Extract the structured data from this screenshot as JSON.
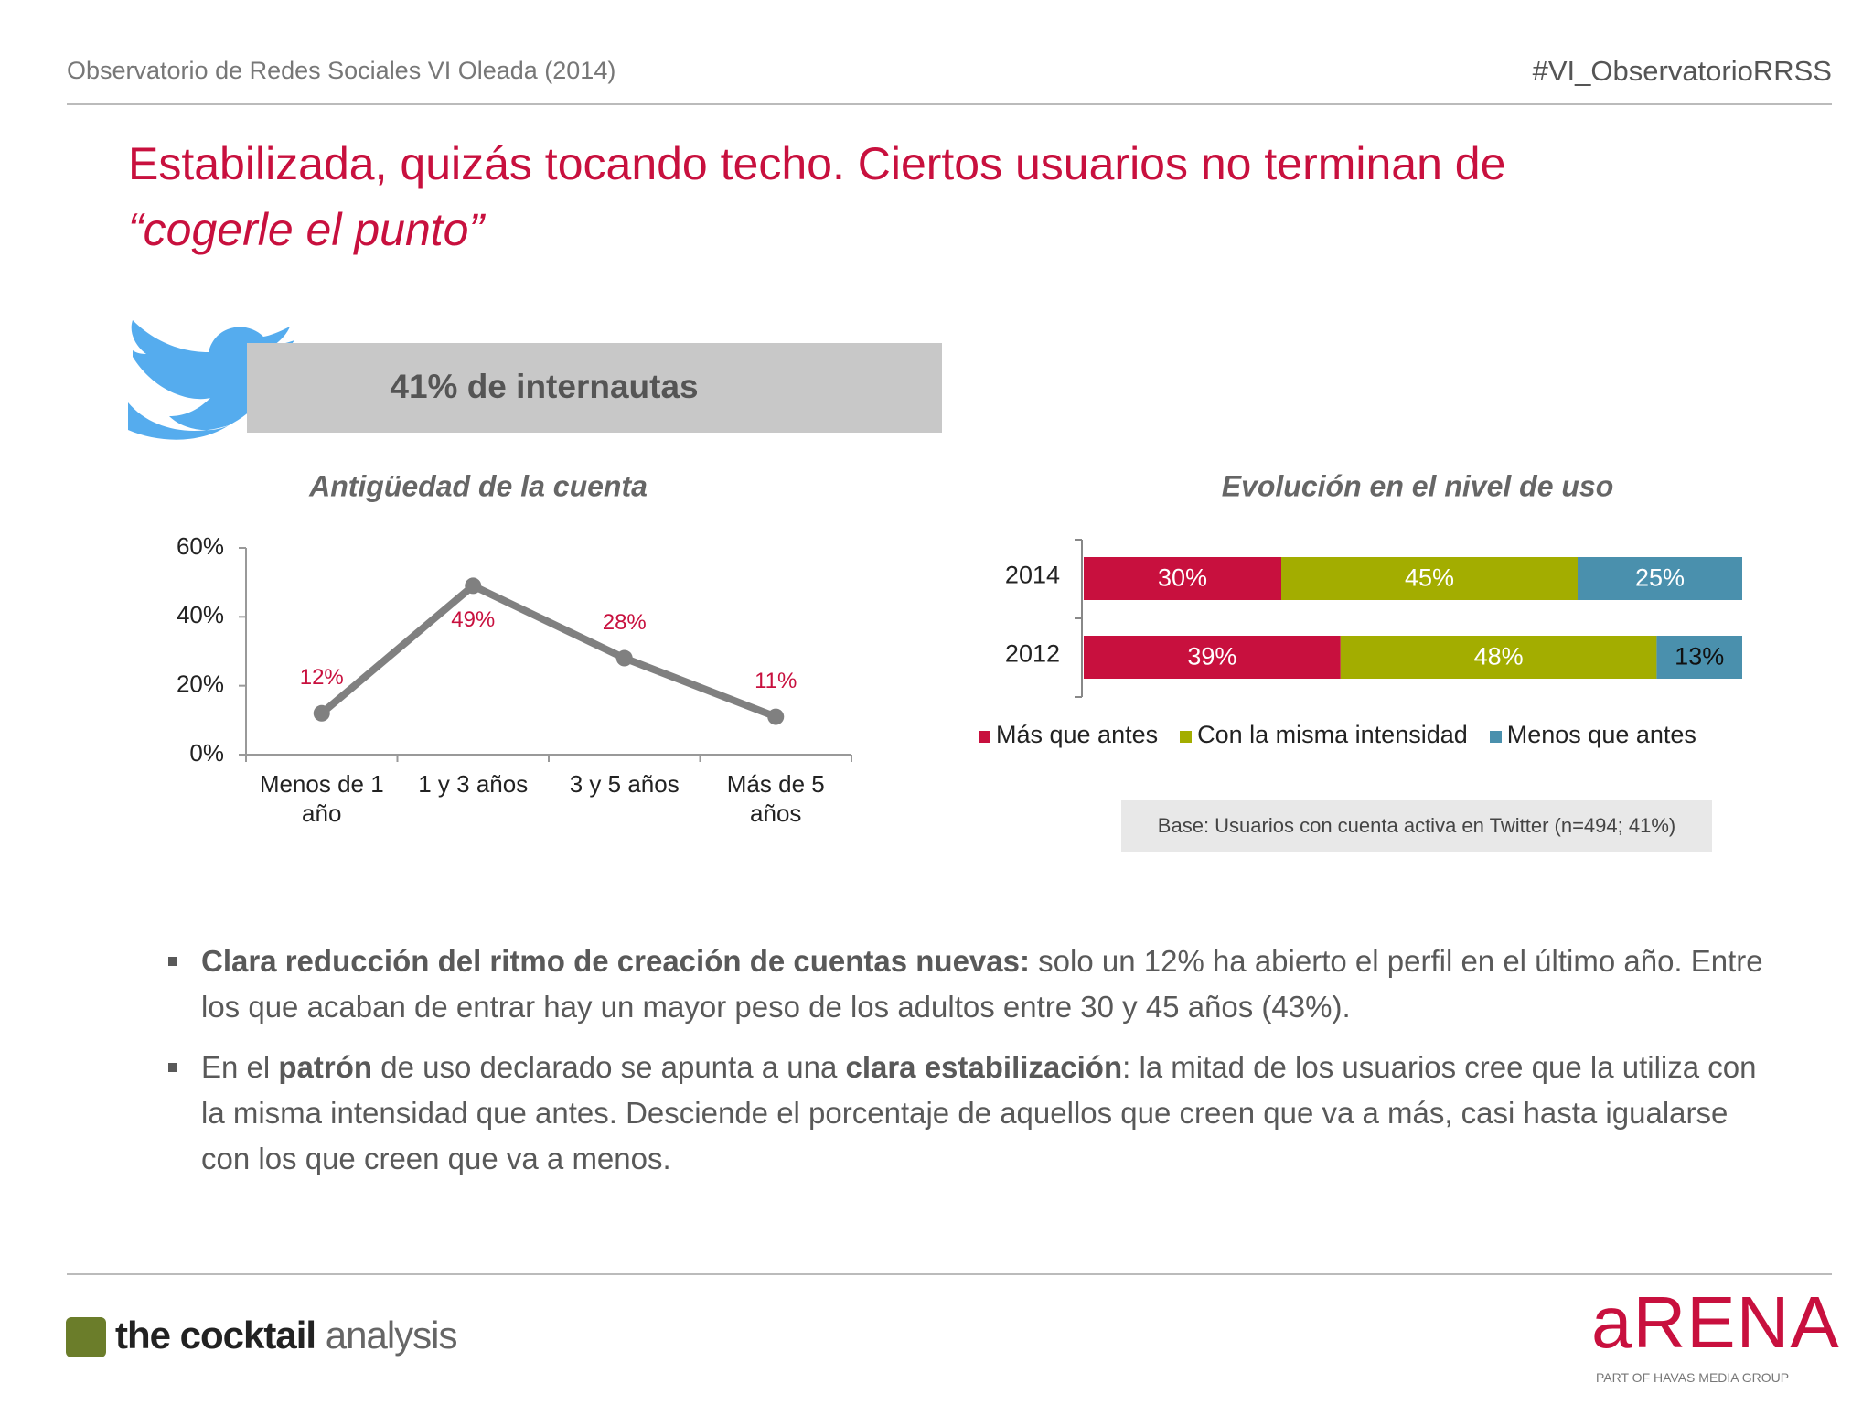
{
  "header": {
    "left": "Observatorio de Redes Sociales VI Oleada (2014)",
    "right": "#VI_ObservatorioRRSS"
  },
  "title": [
    "Estabilizada, quizás tocando techo. Ciertos usuarios no terminan de",
    "“cogerle el punto”"
  ],
  "banner": "41% de internautas",
  "chart_data": [
    {
      "type": "line",
      "title": "Antigüedad de la cuenta",
      "categories": [
        "Menos de 1 año",
        "1 y 3 años",
        "3 y 5 años",
        "Más de 5 años"
      ],
      "values": [
        12,
        49,
        28,
        11
      ],
      "value_labels": [
        "12%",
        "49%",
        "28%",
        "11%"
      ],
      "color": "#808080",
      "label_color": "#c8103e",
      "ylim": [
        0,
        60
      ],
      "yticks": [
        {
          "value": 0,
          "label": "0%"
        },
        {
          "value": 20,
          "label": "20%"
        },
        {
          "value": 40,
          "label": "40%"
        },
        {
          "value": 60,
          "label": "60%"
        }
      ]
    },
    {
      "type": "stacked_hbar",
      "title": "Evolución en el nivel de uso",
      "categories": [
        "2014",
        "2012"
      ],
      "series": [
        {
          "name": "Más que antes",
          "color": "#c8103e",
          "values": [
            30,
            39
          ],
          "value_labels": [
            "30%",
            "39%"
          ]
        },
        {
          "name": "Con la misma intensidad",
          "color": "#a3ad00",
          "values": [
            45,
            48
          ],
          "value_labels": [
            "45%",
            "48%"
          ]
        },
        {
          "name": "Menos que antes",
          "color": "#4a90ad",
          "values": [
            25,
            13
          ],
          "value_labels": [
            "25%",
            "13%"
          ]
        }
      ],
      "xlim": [
        0,
        100
      ],
      "legend": "bottom"
    }
  ],
  "note": "Base: Usuarios con cuenta activa en Twitter (n=494; 41%)",
  "bullets": [
    [
      {
        "text": "Clara reducción del ritmo de creación de cuentas nuevas:",
        "bold": true
      },
      {
        "text": " solo un 12% ha abierto el perfil en el último año. Entre los que acaban de entrar hay un mayor peso de los adultos entre 30 y 45 años (43%).",
        "bold": false
      }
    ],
    [
      {
        "text": "En el ",
        "bold": false
      },
      {
        "text": "patrón",
        "bold": true
      },
      {
        "text": " de uso declarado se apunta a una ",
        "bold": false
      },
      {
        "text": "clara estabilización",
        "bold": true
      },
      {
        "text": ": la mitad de los usuarios cree que la utiliza con la misma intensidad que antes. Desciende el porcentaje de aquellos que creen que va a más, casi hasta igualarse con los que creen que va a menos.",
        "bold": false
      }
    ]
  ],
  "footer": {
    "left_logo_bold": "the cocktail",
    "left_logo_light": " analysis",
    "right_logo": "aRENA",
    "right_sub": "PART OF HAVAS MEDIA GROUP"
  }
}
